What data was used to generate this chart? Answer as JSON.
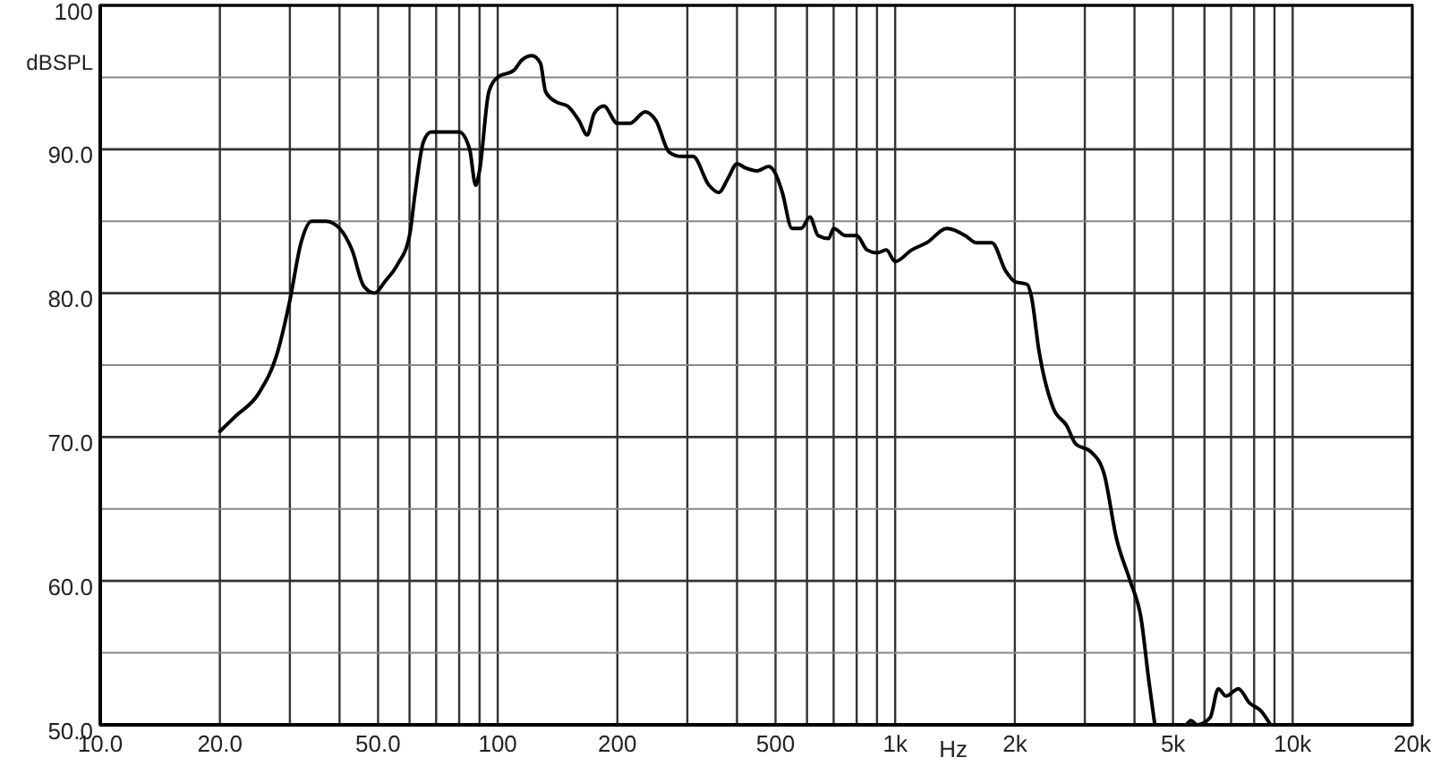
{
  "chart_data": {
    "type": "line",
    "xlabel": "Hz",
    "ylabel": "dBSPL",
    "log": "x",
    "grid": true,
    "marker": "none",
    "line_style": "solid",
    "xlim": [
      10,
      20000
    ],
    "ylim": [
      50,
      100
    ],
    "xticks": [
      {
        "value": 10,
        "label": "10.0"
      },
      {
        "value": 20,
        "label": "20.0"
      },
      {
        "value": 30,
        "label": null
      },
      {
        "value": 40,
        "label": null
      },
      {
        "value": 50,
        "label": "50.0"
      },
      {
        "value": 60,
        "label": null
      },
      {
        "value": 70,
        "label": null
      },
      {
        "value": 80,
        "label": null
      },
      {
        "value": 90,
        "label": null
      },
      100,
      200,
      {
        "value": 300,
        "label": null
      },
      {
        "value": 400,
        "label": null
      },
      500,
      {
        "value": 600,
        "label": null
      },
      {
        "value": 700,
        "label": null
      },
      {
        "value": 800,
        "label": null
      },
      {
        "value": 900,
        "label": null
      },
      {
        "value": 1000,
        "label": "1k"
      },
      {
        "value": 2000,
        "label": "2k"
      },
      {
        "value": 3000,
        "label": null
      },
      {
        "value": 4000,
        "label": null
      },
      {
        "value": 5000,
        "label": "5k"
      },
      {
        "value": 6000,
        "label": null
      },
      {
        "value": 7000,
        "label": null
      },
      {
        "value": 8000,
        "label": null
      },
      {
        "value": 9000,
        "label": null
      },
      {
        "value": 10000,
        "label": "10k"
      },
      {
        "value": 20000,
        "label": "20k"
      }
    ],
    "yticks": [
      {
        "value": 50,
        "label": "50.0"
      },
      {
        "value": 55,
        "label": null
      },
      {
        "value": 60,
        "label": "60.0"
      },
      {
        "value": 65,
        "label": null
      },
      {
        "value": 70,
        "label": "70.0"
      },
      {
        "value": 75,
        "label": null
      },
      {
        "value": 80,
        "label": "80.0"
      },
      {
        "value": 85,
        "label": null
      },
      {
        "value": 90,
        "label": "90.0"
      },
      {
        "value": 95,
        "label": null
      },
      100
    ],
    "series": [
      {
        "color": "#000000",
        "x": [
          20,
          22,
          25,
          28,
          30,
          32,
          34,
          37,
          40,
          43,
          46,
          49,
          52,
          56,
          60,
          62,
          65,
          68,
          75,
          80,
          85,
          88,
          90,
          95,
          100,
          110,
          115,
          122,
          128,
          132,
          140,
          150,
          160,
          168,
          175,
          185,
          200,
          215,
          235,
          250,
          270,
          290,
          310,
          340,
          360,
          380,
          400,
          420,
          450,
          480,
          500,
          520,
          550,
          580,
          610,
          640,
          680,
          700,
          750,
          800,
          850,
          900,
          950,
          1000,
          1100,
          1200,
          1350,
          1500,
          1600,
          1750,
          1900,
          2000,
          2150,
          2200,
          2300,
          2500,
          2700,
          2850,
          3100,
          3350,
          3600,
          3900,
          4150,
          4350,
          4500,
          5000,
          5400,
          5550,
          5750,
          6200,
          6500,
          6800,
          7300,
          7800,
          8300,
          8800
        ],
        "values": [
          70.4,
          71.5,
          73,
          76,
          79.5,
          83.5,
          85,
          85,
          84.5,
          83,
          80.5,
          80,
          80.8,
          82,
          84,
          87,
          90.5,
          91.2,
          91.2,
          91.2,
          90,
          87.5,
          88.5,
          94,
          95,
          95.5,
          96.2,
          96.5,
          96,
          94,
          93.3,
          93,
          92,
          91,
          92.5,
          93,
          91.8,
          91.8,
          92.6,
          92,
          89.8,
          89.5,
          89.5,
          87.5,
          87,
          88,
          89,
          88.7,
          88.5,
          88.8,
          88.3,
          87,
          84.5,
          84.5,
          85.3,
          84,
          83.8,
          84.5,
          84,
          84,
          83,
          82.8,
          83,
          82.2,
          83,
          83.5,
          84.5,
          84,
          83.5,
          83.5,
          81.5,
          80.8,
          80.6,
          79.8,
          76,
          72,
          70.8,
          69.5,
          69,
          67.5,
          63,
          60,
          57.5,
          53,
          50,
          null,
          50,
          50.3,
          50,
          50.5,
          52.5,
          52,
          52.5,
          51.5,
          51,
          50
        ]
      }
    ]
  }
}
